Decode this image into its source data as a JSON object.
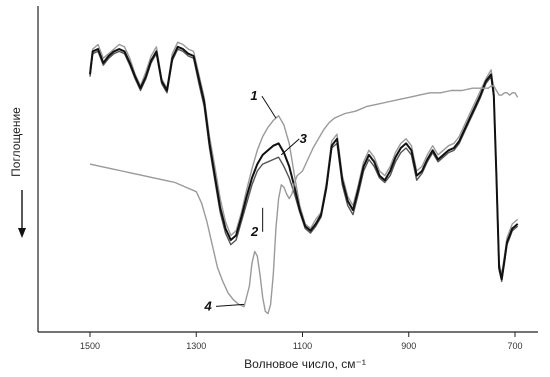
{
  "chart_data": {
    "type": "line",
    "title": "",
    "xlabel": "Волновое число, см⁻¹",
    "ylabel": "Поглощение",
    "xlim": [
      1510,
      680
    ],
    "x_ticks": [
      1500,
      1300,
      1100,
      900,
      700
    ],
    "y_ticks": [],
    "grid": false,
    "colors": {
      "dark": "#111111",
      "mid": "#555555",
      "light": "#9a9a9a",
      "axis": "#222222"
    },
    "annotations": [
      {
        "label": "1",
        "x": 1150,
        "y": 0.93
      },
      {
        "label": "3",
        "x": 1140,
        "y": 0.77
      },
      {
        "label": "2",
        "x": 1175,
        "y": 0.54
      },
      {
        "label": "4",
        "x": 1210,
        "y": 0.12
      }
    ],
    "series": [
      {
        "id": "s1",
        "color": "#9a9a9a",
        "x": [
          1500,
          1495,
          1485,
          1475,
          1465,
          1455,
          1445,
          1435,
          1425,
          1415,
          1405,
          1395,
          1385,
          1375,
          1365,
          1355,
          1345,
          1335,
          1325,
          1315,
          1305,
          1295,
          1285,
          1275,
          1265,
          1255,
          1245,
          1235,
          1225,
          1215,
          1205,
          1195,
          1185,
          1175,
          1165,
          1155,
          1145,
          1135,
          1125,
          1115,
          1105,
          1095,
          1085,
          1075,
          1065,
          1055,
          1045,
          1035,
          1025,
          1015,
          1005,
          995,
          985,
          975,
          965,
          955,
          945,
          935,
          925,
          915,
          905,
          895,
          885,
          875,
          865,
          855,
          845,
          835,
          825,
          815,
          805,
          795,
          785,
          775,
          765,
          755,
          745,
          740,
          735,
          730,
          725,
          720,
          715,
          710,
          705,
          700,
          695
        ],
        "y": [
          1.14,
          1.23,
          1.25,
          1.19,
          1.21,
          1.23,
          1.25,
          1.24,
          1.19,
          1.12,
          1.07,
          1.13,
          1.2,
          1.24,
          1.1,
          1.06,
          1.21,
          1.26,
          1.25,
          1.23,
          1.22,
          1.12,
          1.02,
          0.85,
          0.72,
          0.58,
          0.48,
          0.42,
          0.44,
          0.52,
          0.62,
          0.71,
          0.79,
          0.85,
          0.89,
          0.92,
          0.94,
          0.9,
          0.82,
          0.68,
          0.55,
          0.47,
          0.45,
          0.49,
          0.52,
          0.65,
          0.83,
          0.86,
          0.68,
          0.59,
          0.55,
          0.64,
          0.74,
          0.79,
          0.76,
          0.7,
          0.68,
          0.72,
          0.78,
          0.82,
          0.84,
          0.81,
          0.7,
          0.72,
          0.77,
          0.81,
          0.77,
          0.79,
          0.81,
          0.82,
          0.85,
          0.9,
          0.95,
          1.0,
          1.05,
          1.1,
          1.14,
          1.05,
          0.7,
          0.3,
          0.25,
          0.33,
          0.41,
          0.44,
          0.47,
          0.48,
          0.49
        ]
      },
      {
        "id": "s2",
        "color": "#555555",
        "x": [
          1500,
          1495,
          1485,
          1475,
          1465,
          1455,
          1445,
          1435,
          1425,
          1415,
          1405,
          1395,
          1385,
          1375,
          1365,
          1355,
          1345,
          1335,
          1325,
          1315,
          1305,
          1295,
          1285,
          1275,
          1265,
          1255,
          1245,
          1235,
          1225,
          1215,
          1205,
          1195,
          1185,
          1175,
          1165,
          1155,
          1145,
          1135,
          1125,
          1115,
          1105,
          1095,
          1085,
          1075,
          1065,
          1055,
          1045,
          1035,
          1025,
          1015,
          1005,
          995,
          985,
          975,
          965,
          955,
          945,
          935,
          925,
          915,
          905,
          895,
          885,
          875,
          865,
          855,
          845,
          835,
          825,
          815,
          805,
          795,
          785,
          775,
          765,
          755,
          745,
          740,
          735,
          730,
          725,
          720,
          715,
          710,
          705,
          700,
          695
        ],
        "y": [
          1.11,
          1.21,
          1.22,
          1.16,
          1.19,
          1.21,
          1.22,
          1.21,
          1.16,
          1.1,
          1.05,
          1.1,
          1.17,
          1.21,
          1.08,
          1.04,
          1.18,
          1.23,
          1.22,
          1.2,
          1.19,
          1.08,
          0.98,
          0.8,
          0.66,
          0.52,
          0.43,
          0.38,
          0.4,
          0.48,
          0.56,
          0.64,
          0.7,
          0.73,
          0.74,
          0.75,
          0.76,
          0.72,
          0.67,
          0.6,
          0.52,
          0.45,
          0.43,
          0.46,
          0.5,
          0.62,
          0.8,
          0.82,
          0.64,
          0.55,
          0.51,
          0.6,
          0.7,
          0.75,
          0.72,
          0.67,
          0.65,
          0.68,
          0.74,
          0.78,
          0.8,
          0.77,
          0.66,
          0.69,
          0.74,
          0.78,
          0.74,
          0.76,
          0.78,
          0.79,
          0.82,
          0.87,
          0.92,
          0.97,
          1.02,
          1.08,
          1.11,
          1.02,
          0.67,
          0.27,
          0.22,
          0.3,
          0.38,
          0.41,
          0.44,
          0.45,
          0.46
        ]
      },
      {
        "id": "s3",
        "color": "#111111",
        "x": [
          1500,
          1495,
          1485,
          1475,
          1465,
          1455,
          1445,
          1435,
          1425,
          1415,
          1405,
          1395,
          1385,
          1375,
          1365,
          1355,
          1345,
          1335,
          1325,
          1315,
          1305,
          1295,
          1285,
          1275,
          1265,
          1255,
          1245,
          1235,
          1225,
          1215,
          1205,
          1195,
          1185,
          1175,
          1165,
          1155,
          1145,
          1135,
          1125,
          1115,
          1105,
          1095,
          1085,
          1075,
          1065,
          1055,
          1045,
          1035,
          1025,
          1015,
          1005,
          995,
          985,
          975,
          965,
          955,
          945,
          935,
          925,
          915,
          905,
          895,
          885,
          875,
          865,
          855,
          845,
          835,
          825,
          815,
          805,
          795,
          785,
          775,
          765,
          755,
          745,
          740,
          735,
          730,
          725,
          720,
          715,
          710,
          705,
          700,
          695
        ],
        "y": [
          1.12,
          1.22,
          1.23,
          1.17,
          1.2,
          1.22,
          1.23,
          1.22,
          1.17,
          1.11,
          1.06,
          1.11,
          1.18,
          1.22,
          1.09,
          1.05,
          1.19,
          1.24,
          1.23,
          1.21,
          1.2,
          1.1,
          1.0,
          0.82,
          0.68,
          0.54,
          0.45,
          0.4,
          0.42,
          0.5,
          0.59,
          0.67,
          0.73,
          0.77,
          0.79,
          0.81,
          0.82,
          0.78,
          0.72,
          0.63,
          0.53,
          0.46,
          0.44,
          0.47,
          0.51,
          0.63,
          0.81,
          0.84,
          0.66,
          0.57,
          0.53,
          0.62,
          0.72,
          0.77,
          0.74,
          0.68,
          0.66,
          0.7,
          0.76,
          0.8,
          0.82,
          0.79,
          0.68,
          0.7,
          0.75,
          0.79,
          0.75,
          0.77,
          0.79,
          0.8,
          0.83,
          0.88,
          0.93,
          0.98,
          1.03,
          1.09,
          1.12,
          1.03,
          0.68,
          0.28,
          0.23,
          0.31,
          0.39,
          0.42,
          0.45,
          0.46,
          0.47
        ]
      },
      {
        "id": "s4",
        "color": "#9a9a9a",
        "x": [
          1500,
          1480,
          1460,
          1440,
          1420,
          1400,
          1380,
          1360,
          1340,
          1320,
          1300,
          1290,
          1280,
          1270,
          1260,
          1250,
          1240,
          1230,
          1220,
          1210,
          1200,
          1195,
          1190,
          1185,
          1180,
          1175,
          1170,
          1165,
          1160,
          1155,
          1150,
          1145,
          1140,
          1135,
          1130,
          1125,
          1120,
          1115,
          1110,
          1100,
          1090,
          1080,
          1070,
          1060,
          1050,
          1040,
          1020,
          1000,
          980,
          960,
          940,
          920,
          900,
          880,
          860,
          840,
          820,
          800,
          780,
          760,
          750,
          745,
          740,
          735,
          730,
          725,
          720,
          715,
          710,
          705,
          700,
          695
        ],
        "y": [
          0.73,
          0.72,
          0.71,
          0.7,
          0.69,
          0.68,
          0.67,
          0.66,
          0.65,
          0.63,
          0.61,
          0.56,
          0.48,
          0.38,
          0.28,
          0.22,
          0.17,
          0.14,
          0.12,
          0.11,
          0.2,
          0.3,
          0.35,
          0.33,
          0.25,
          0.15,
          0.09,
          0.08,
          0.12,
          0.25,
          0.45,
          0.58,
          0.64,
          0.63,
          0.6,
          0.58,
          0.6,
          0.65,
          0.68,
          0.7,
          0.75,
          0.8,
          0.84,
          0.88,
          0.91,
          0.93,
          0.95,
          0.96,
          0.98,
          0.99,
          1.0,
          1.01,
          1.02,
          1.03,
          1.04,
          1.04,
          1.05,
          1.05,
          1.06,
          1.06,
          1.06,
          1.07,
          1.07,
          1.05,
          1.03,
          1.03,
          1.04,
          1.04,
          1.03,
          1.04,
          1.04,
          1.02
        ]
      }
    ]
  }
}
